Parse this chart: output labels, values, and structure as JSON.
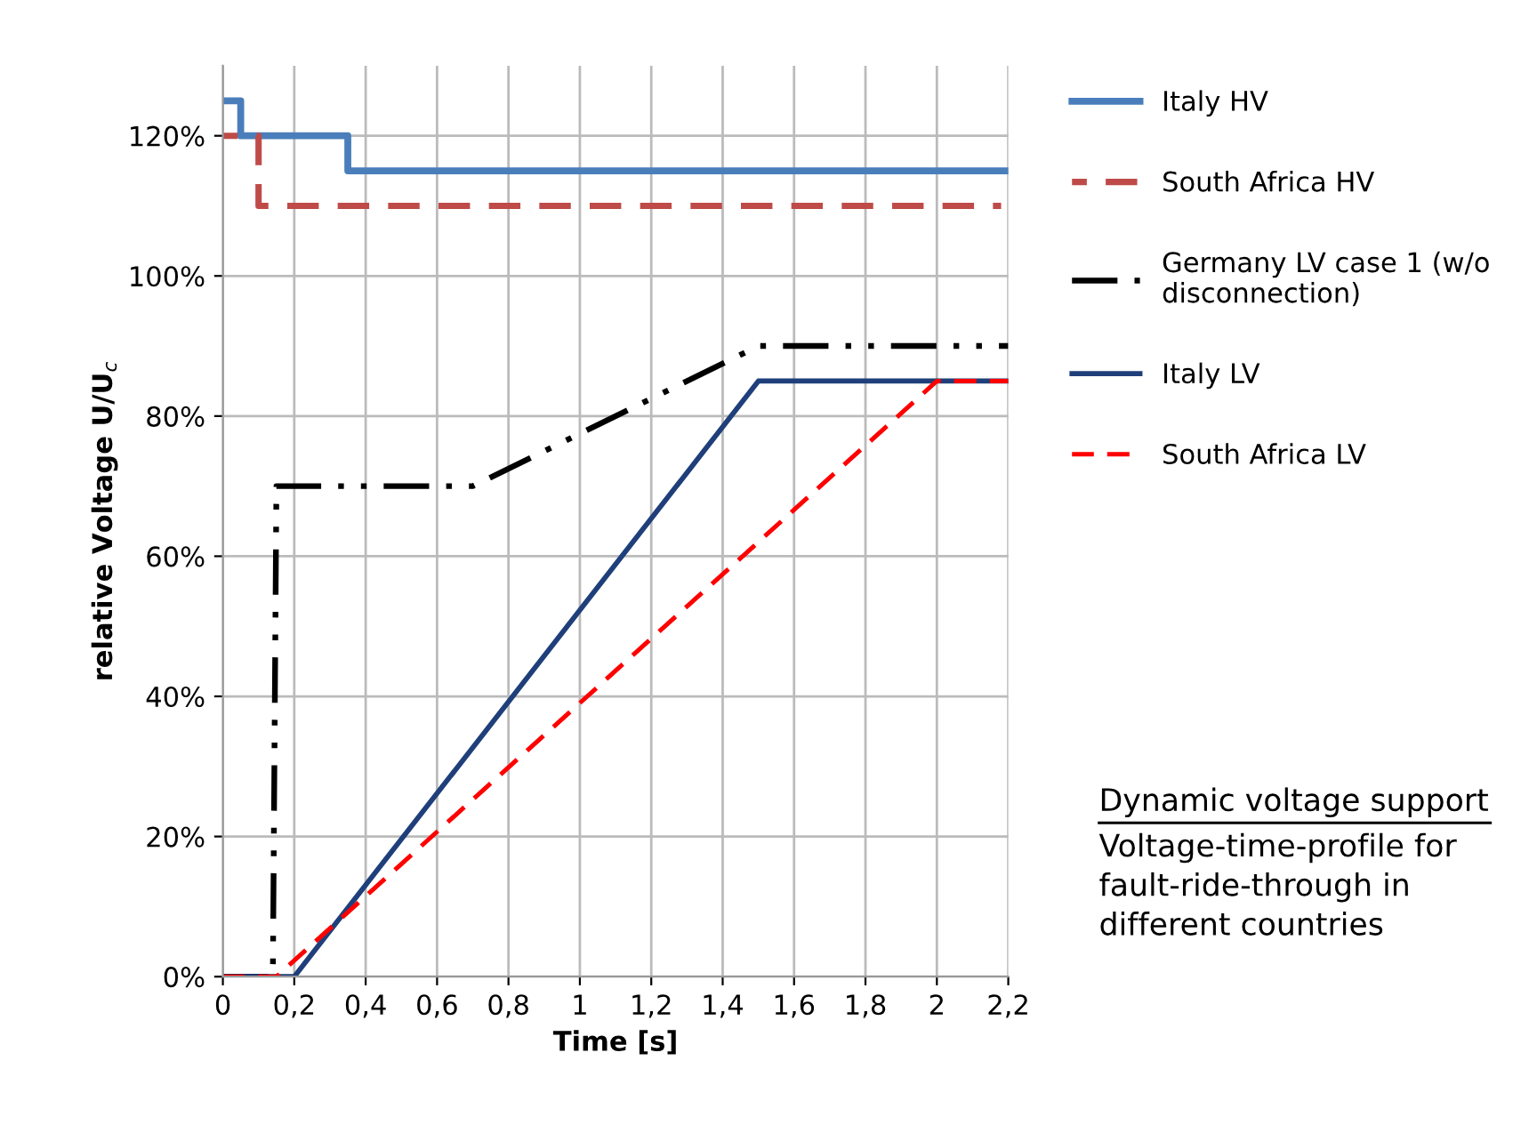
{
  "chart_data": {
    "type": "line",
    "xlabel": "Time [s]",
    "ylabel": "relative Voltage U/U$_{c}$",
    "xlim": [
      0,
      2.2
    ],
    "ylim": [
      0,
      130
    ],
    "xticks": [
      0,
      {
        "value": 0.2,
        "label": "0,2"
      },
      {
        "value": 0.4,
        "label": "0,4"
      },
      {
        "value": 0.6,
        "label": "0,6"
      },
      {
        "value": 0.8,
        "label": "0,8"
      },
      1,
      {
        "value": 1.2,
        "label": "1,2"
      },
      {
        "value": 1.4,
        "label": "1,4"
      },
      {
        "value": 1.6,
        "label": "1,6"
      },
      {
        "value": 1.8,
        "label": "1,8"
      },
      2,
      {
        "value": 2.2,
        "label": "2,2"
      }
    ],
    "yticks": [
      {
        "value": 0,
        "label": "0%"
      },
      {
        "value": 20,
        "label": "20%"
      },
      {
        "value": 40,
        "label": "40%"
      },
      {
        "value": 60,
        "label": "60%"
      },
      {
        "value": 80,
        "label": "80%"
      },
      {
        "value": 100,
        "label": "100%"
      },
      {
        "value": 120,
        "label": "120%"
      }
    ],
    "grid": true,
    "legend": "right",
    "marker": "none",
    "series": [
      {
        "name": "Italy HV",
        "color": "#4a7ebb",
        "line_style": "solid",
        "x": [
          0,
          0.05,
          0.05,
          0.35,
          0.35,
          2.2
        ],
        "values": [
          125,
          125,
          120,
          120,
          115,
          115
        ]
      },
      {
        "name": "South Africa HV",
        "color": "#be4b48",
        "line_style": "dashed",
        "x": [
          0,
          0.1,
          0.1,
          2.18
        ],
        "values": [
          120,
          120,
          110,
          110
        ]
      },
      {
        "name": "Germany LV case 1 (w/o\ndisconnection)",
        "color": "#000000",
        "line_style": "dashdotdot",
        "x": [
          0,
          0.14,
          0.15,
          0.7,
          1.5,
          2.2
        ],
        "values": [
          0,
          0,
          70,
          70,
          90,
          90
        ]
      },
      {
        "name": "Italy LV",
        "color": "#1f3f7a",
        "line_style": "solid",
        "x": [
          0,
          0.2,
          1.5,
          2.2
        ],
        "values": [
          0,
          0,
          85,
          85
        ]
      },
      {
        "name": "South Africa LV",
        "color": "#ff0000",
        "line_style": "dashed",
        "x": [
          0,
          0.15,
          2.0,
          2.2
        ],
        "values": [
          0,
          0,
          85,
          85
        ]
      }
    ],
    "annotations": [
      "Dynamic voltage support",
      "Voltage-time-profile for\nfault-ride-through in\ndifferent countries"
    ]
  }
}
